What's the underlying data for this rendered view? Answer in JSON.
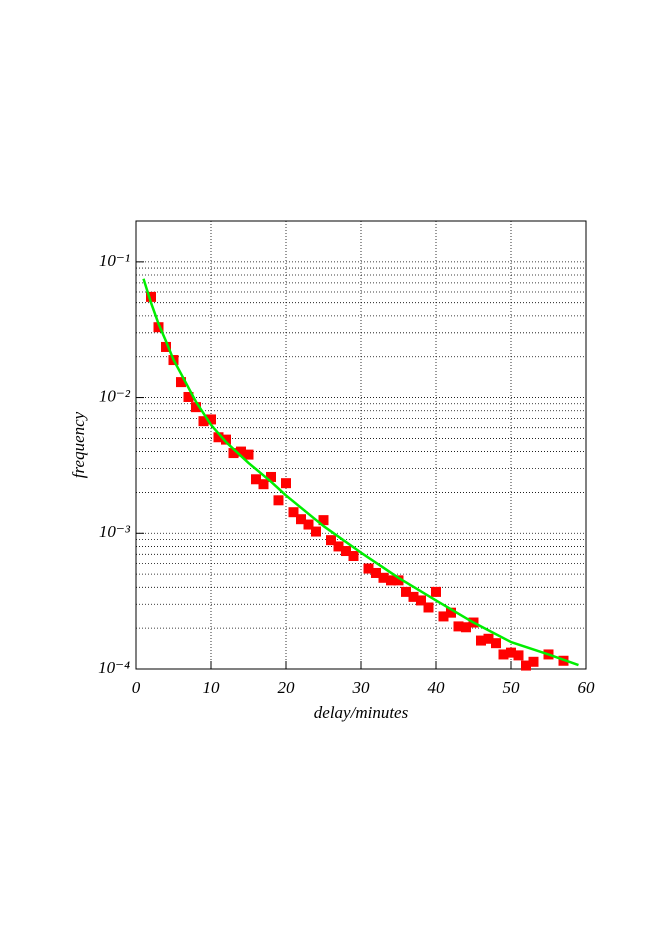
{
  "chart_data": {
    "type": "scatter",
    "xlabel": "delay/minutes",
    "ylabel": "frequency",
    "log_y": true,
    "grid": true,
    "xlim": [
      0,
      60
    ],
    "xticks": [
      0,
      10,
      20,
      30,
      40,
      50,
      60
    ],
    "ylim": [
      0.0001,
      0.2
    ],
    "yticks": [
      {
        "value": 0.1,
        "label": "10⁻¹"
      },
      {
        "value": 0.01,
        "label": "10⁻²"
      },
      {
        "value": 0.001,
        "label": "10⁻³"
      },
      {
        "value": 0.0001,
        "label": "10⁻⁴"
      }
    ],
    "y_minor_grid": [
      0.2,
      0.09,
      0.08,
      0.07,
      0.06,
      0.05,
      0.04,
      0.03,
      0.02,
      0.009,
      0.008,
      0.007,
      0.006,
      0.005,
      0.004,
      0.003,
      0.002,
      0.0009,
      0.0008,
      0.0007,
      0.0006,
      0.0005,
      0.0004,
      0.0003,
      0.0002
    ],
    "series": [
      {
        "kind": "scatter",
        "color": "#ff0000",
        "x": [
          2,
          3,
          4,
          5,
          6,
          7,
          8,
          9,
          10,
          11,
          12,
          13,
          14,
          15,
          16,
          17,
          18,
          19,
          20,
          21,
          22,
          23,
          24,
          25,
          26,
          27,
          28,
          29,
          31,
          32,
          33,
          34,
          35,
          36,
          37,
          38,
          39,
          40,
          41,
          42,
          43,
          44,
          45,
          46,
          47,
          48,
          49,
          50,
          51,
          52,
          53,
          55,
          57
        ],
        "values": [
          0.0552,
          0.033,
          0.0236,
          0.0189,
          0.013,
          0.0101,
          0.0085,
          0.0067,
          0.0069,
          0.0051,
          0.0049,
          0.0039,
          0.004,
          0.0038,
          0.0025,
          0.0023,
          0.0026,
          0.00175,
          0.00234,
          0.00143,
          0.00127,
          0.00116,
          0.00103,
          0.00125,
          0.00089,
          0.0008,
          0.00074,
          0.00068,
          0.00055,
          0.00051,
          0.00047,
          0.00045,
          0.00045,
          0.00037,
          0.00034,
          0.00032,
          0.000284,
          0.00037,
          0.000244,
          0.00026,
          0.000206,
          0.000203,
          0.00022,
          0.000162,
          0.000167,
          0.000155,
          0.000128,
          0.000132,
          0.000126,
          0.000106,
          0.000113,
          0.000128,
          0.000115
        ]
      },
      {
        "kind": "line",
        "color": "#00ee00",
        "x": [
          1,
          2,
          3,
          4,
          5,
          6,
          8,
          10,
          12,
          15,
          18,
          20,
          25,
          30,
          35,
          40,
          45,
          50,
          55,
          59
        ],
        "values": [
          0.075,
          0.05,
          0.035,
          0.026,
          0.019,
          0.015,
          0.0093,
          0.0063,
          0.0047,
          0.0033,
          0.0024,
          0.0019,
          0.00113,
          0.00072,
          0.00047,
          0.00032,
          0.00022,
          0.000158,
          0.000128,
          0.000107
        ]
      }
    ]
  }
}
